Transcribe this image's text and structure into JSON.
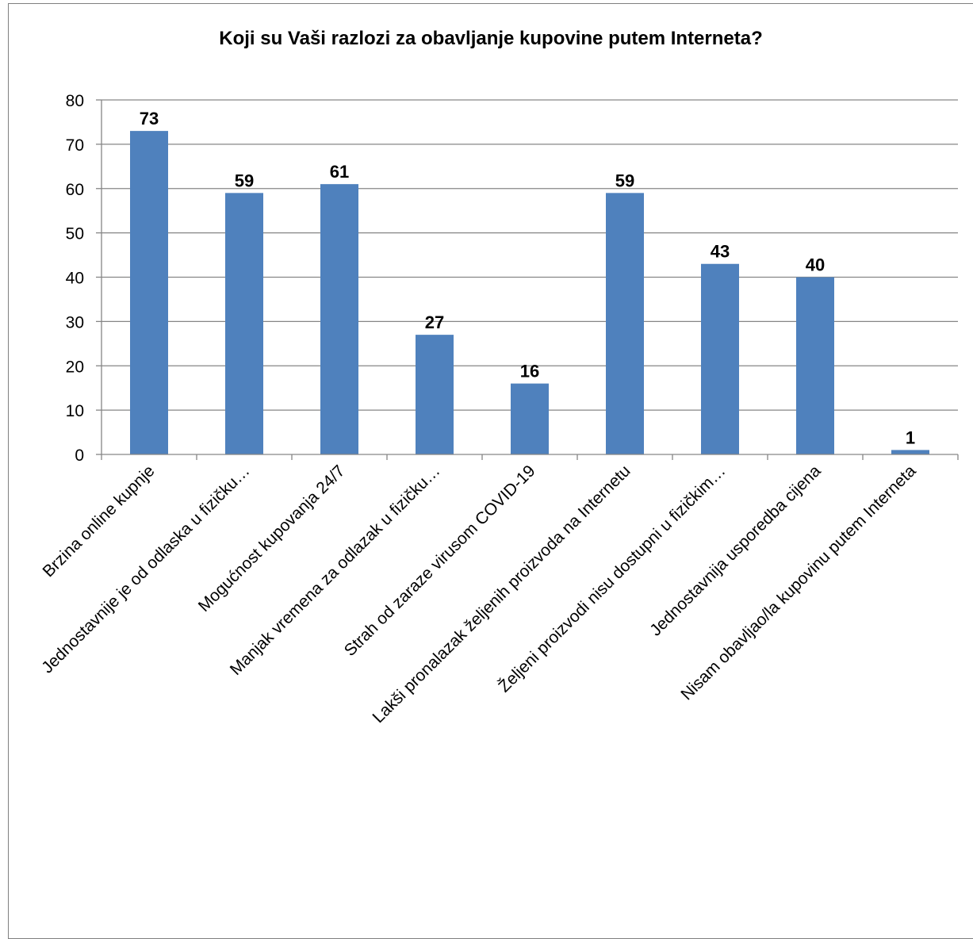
{
  "chart_data": {
    "type": "bar",
    "title": "Koji su Vaši razlozi za obavljanje kupovine putem Interneta?",
    "categories": [
      "Brzina online kupnje",
      "Jednostavnije je od odlaska u fizičku…",
      "Mogućnost kupovanja 24/7",
      "Manjak vremena za odlazak u fizičku…",
      "Strah od zaraze virusom COVID-19",
      "Lakši pronalazak željenih proizvoda na Internetu",
      "Željeni proizvodi nisu dostupni u fizičkim…",
      "Jednostavnija usporedba cijena",
      "Nisam obavljao/la kupovinu putem Interneta"
    ],
    "values": [
      73,
      59,
      61,
      27,
      16,
      59,
      43,
      40,
      1
    ],
    "ylim": [
      0,
      80
    ],
    "yticks": [
      0,
      10,
      20,
      30,
      40,
      50,
      60,
      70,
      80
    ],
    "grid": true,
    "legend": "none",
    "bar_color": "#4f81bd"
  }
}
